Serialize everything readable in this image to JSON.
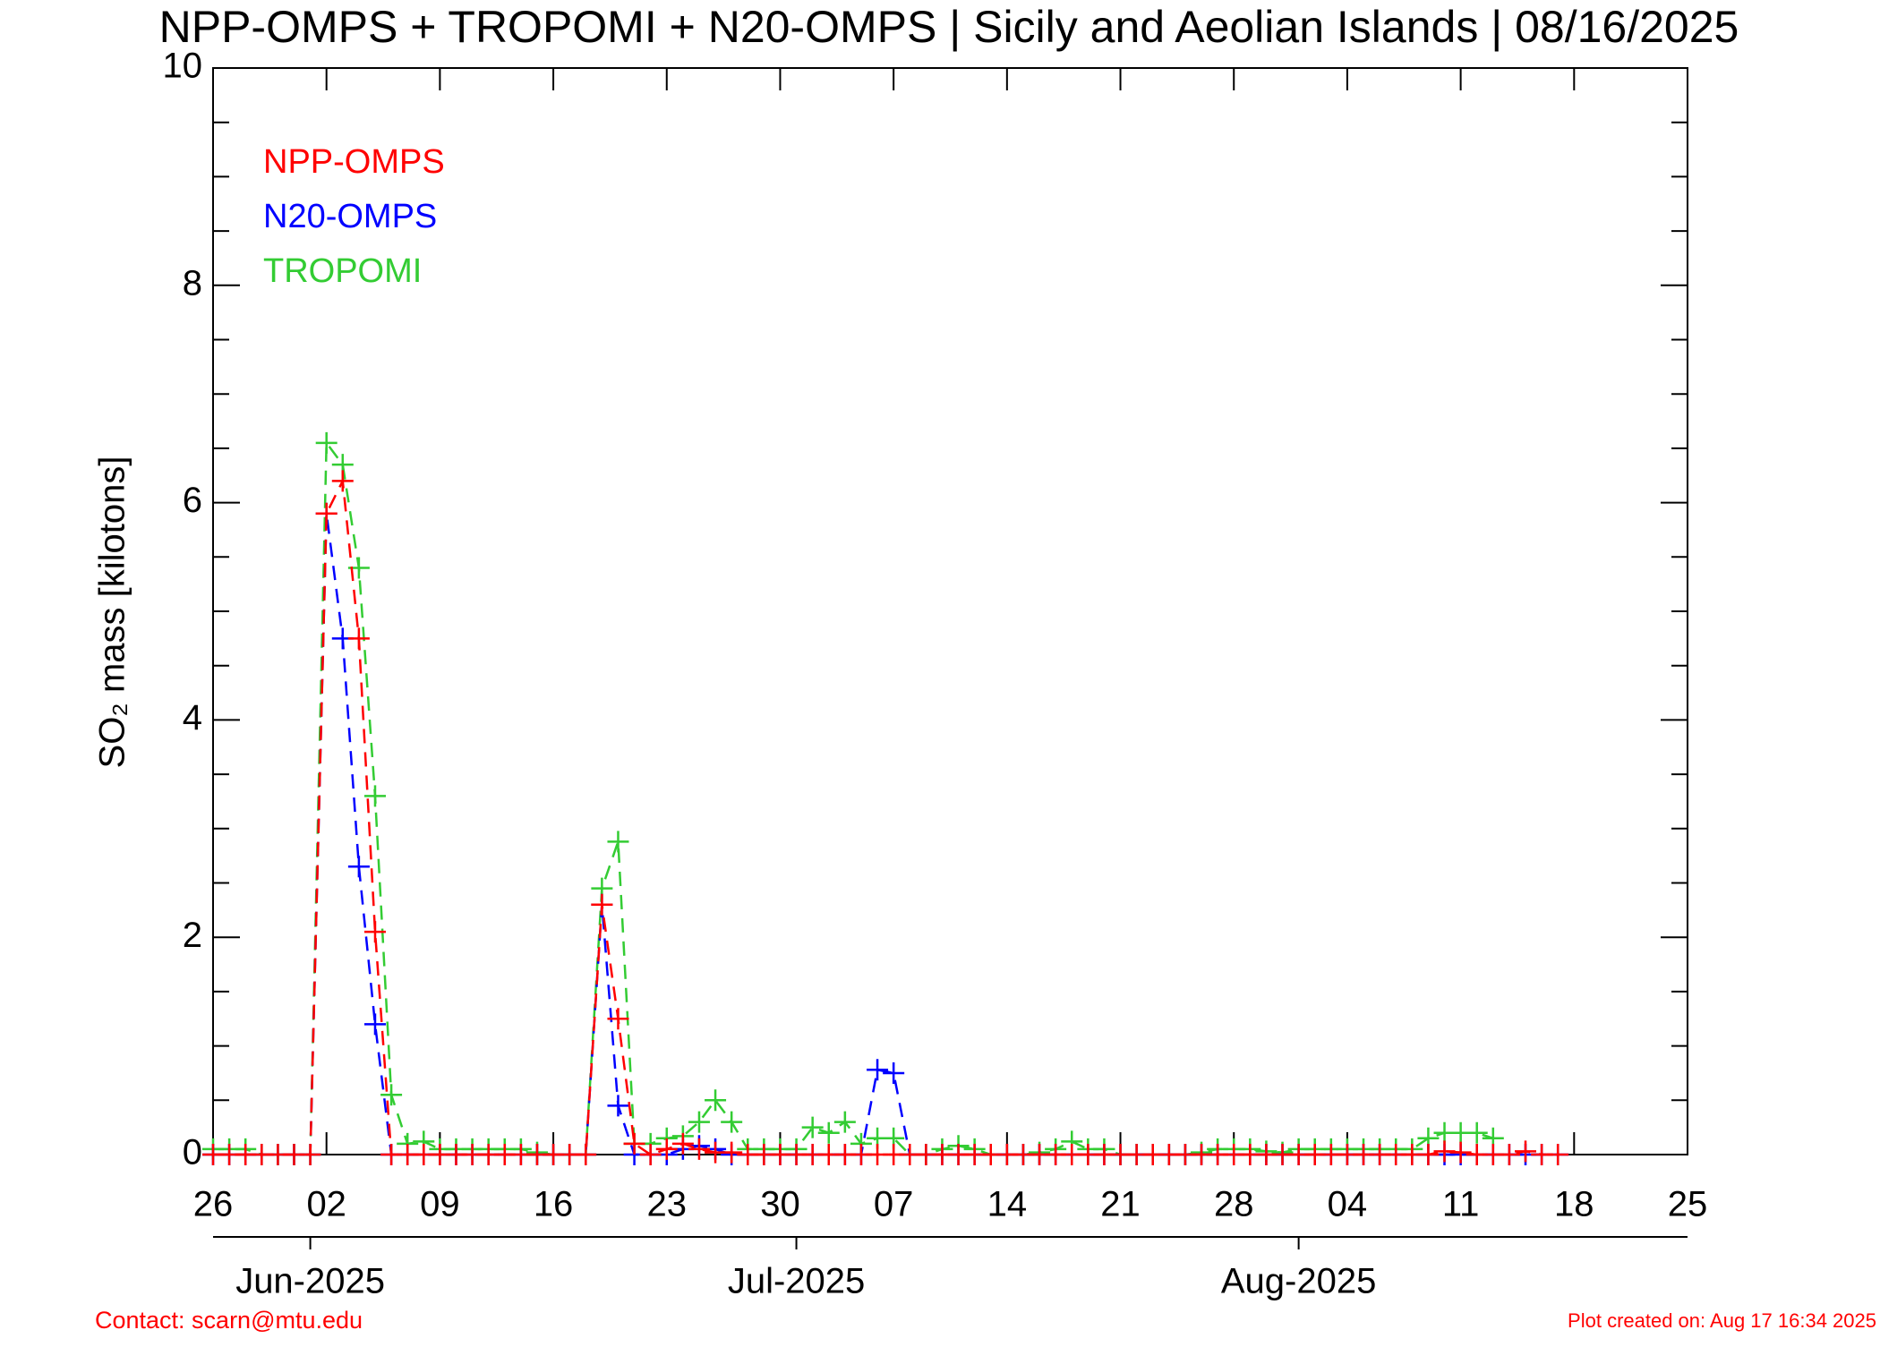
{
  "chart_data": {
    "type": "line",
    "title": "NPP-OMPS + TROPOMI + N20-OMPS | Sicily and Aeolian Islands | 08/16/2025",
    "y_label": "SO₂ mass [kilotons]",
    "contact": "Contact: scarn@mtu.edu",
    "created": "Plot created on: Aug 17 16:34 2025",
    "xlim": [
      "2025-05-26",
      "2025-08-25"
    ],
    "xticks": [
      {
        "value": "2025-05-26",
        "label": "26"
      },
      {
        "value": "2025-06-02",
        "label": "02"
      },
      {
        "value": "2025-06-09",
        "label": "09"
      },
      {
        "value": "2025-06-16",
        "label": "16"
      },
      {
        "value": "2025-06-23",
        "label": "23"
      },
      {
        "value": "2025-06-30",
        "label": "30"
      },
      {
        "value": "2025-07-07",
        "label": "07"
      },
      {
        "value": "2025-07-14",
        "label": "14"
      },
      {
        "value": "2025-07-21",
        "label": "21"
      },
      {
        "value": "2025-07-28",
        "label": "28"
      },
      {
        "value": "2025-08-04",
        "label": "04"
      },
      {
        "value": "2025-08-11",
        "label": "11"
      },
      {
        "value": "2025-08-18",
        "label": "18"
      },
      {
        "value": "2025-08-25",
        "label": "25"
      }
    ],
    "month_ticks": [
      {
        "value": "2025-06-01",
        "label": "Jun-2025"
      },
      {
        "value": "2025-07-01",
        "label": "Jul-2025"
      },
      {
        "value": "2025-08-01",
        "label": "Aug-2025"
      }
    ],
    "ylim": [
      0,
      10
    ],
    "yticks": [
      0,
      2,
      4,
      6,
      8,
      10
    ],
    "yminorticks": [
      0.5,
      1,
      1.5,
      2.5,
      3,
      3.5,
      4.5,
      5,
      5.5,
      6.5,
      7,
      7.5,
      8.5,
      9,
      9.5
    ],
    "x": [
      "2025-05-26",
      "2025-05-27",
      "2025-05-28",
      "2025-05-29",
      "2025-05-30",
      "2025-05-31",
      "2025-06-01",
      "2025-06-02",
      "2025-06-03",
      "2025-06-04",
      "2025-06-05",
      "2025-06-06",
      "2025-06-07",
      "2025-06-08",
      "2025-06-09",
      "2025-06-10",
      "2025-06-11",
      "2025-06-12",
      "2025-06-13",
      "2025-06-14",
      "2025-06-15",
      "2025-06-16",
      "2025-06-17",
      "2025-06-18",
      "2025-06-19",
      "2025-06-20",
      "2025-06-21",
      "2025-06-22",
      "2025-06-23",
      "2025-06-24",
      "2025-06-25",
      "2025-06-26",
      "2025-06-27",
      "2025-06-28",
      "2025-06-29",
      "2025-06-30",
      "2025-07-01",
      "2025-07-02",
      "2025-07-03",
      "2025-07-04",
      "2025-07-05",
      "2025-07-06",
      "2025-07-07",
      "2025-07-08",
      "2025-07-09",
      "2025-07-10",
      "2025-07-11",
      "2025-07-12",
      "2025-07-13",
      "2025-07-14",
      "2025-07-15",
      "2025-07-16",
      "2025-07-17",
      "2025-07-18",
      "2025-07-19",
      "2025-07-20",
      "2025-07-21",
      "2025-07-22",
      "2025-07-23",
      "2025-07-24",
      "2025-07-25",
      "2025-07-26",
      "2025-07-27",
      "2025-07-28",
      "2025-07-29",
      "2025-07-30",
      "2025-07-31",
      "2025-08-01",
      "2025-08-02",
      "2025-08-03",
      "2025-08-04",
      "2025-08-05",
      "2025-08-06",
      "2025-08-07",
      "2025-08-08",
      "2025-08-09",
      "2025-08-10",
      "2025-08-11",
      "2025-08-12",
      "2025-08-13",
      "2025-08-14",
      "2025-08-15",
      "2025-08-16",
      "2025-08-17"
    ],
    "series": [
      {
        "name": "NPP-OMPS",
        "color": "#ff0000",
        "values": [
          0,
          0,
          0,
          0,
          0,
          0,
          0,
          5.9,
          6.2,
          4.75,
          2.05,
          0,
          0,
          0,
          0,
          0,
          0,
          0,
          0,
          0,
          0,
          0,
          0,
          0,
          2.3,
          1.25,
          0.1,
          0,
          0.05,
          0.1,
          0.05,
          0.02,
          0.02,
          0,
          0,
          0,
          0,
          0,
          0,
          0,
          0,
          0,
          0,
          0,
          0,
          0,
          0,
          0,
          0,
          0,
          0,
          0,
          0,
          0,
          0,
          0,
          0,
          0,
          0,
          0,
          0,
          0,
          0,
          0,
          0,
          0,
          0,
          0,
          0,
          0,
          0,
          0,
          0,
          0,
          0,
          0,
          0.03,
          0.02,
          0,
          0,
          0,
          0.03,
          0,
          0
        ]
      },
      {
        "name": "N20-OMPS",
        "color": "#0000ff",
        "values": [
          0,
          0,
          0,
          0,
          0,
          0,
          0,
          5.9,
          4.75,
          2.65,
          1.2,
          0,
          0,
          0,
          0,
          0,
          0,
          0,
          0,
          0,
          0,
          0,
          0,
          0,
          2.3,
          0.45,
          0,
          0,
          0,
          0.05,
          0.08,
          0.05,
          0,
          0,
          0,
          0,
          0,
          0,
          0,
          0,
          0,
          0.78,
          0.75,
          0,
          0,
          0,
          0,
          0,
          0,
          0,
          0,
          0,
          0,
          0,
          0,
          0,
          0,
          0,
          0,
          0,
          0,
          0,
          0,
          0,
          0,
          0,
          0,
          0,
          0,
          0,
          0,
          0,
          0,
          0,
          0,
          0,
          0,
          0,
          0,
          0,
          0,
          0,
          0,
          0
        ]
      },
      {
        "name": "TROPOMI",
        "color": "#33cc33",
        "values": [
          0.05,
          0.05,
          0.05,
          0,
          0,
          0,
          0,
          6.55,
          6.35,
          5.4,
          3.3,
          0.55,
          0.1,
          0.12,
          0.05,
          0.05,
          0.05,
          0.05,
          0.05,
          0.05,
          0.02,
          0,
          0,
          0,
          2.45,
          2.88,
          0.1,
          0.1,
          0.15,
          0.17,
          0.3,
          0.5,
          0.3,
          0.05,
          0.05,
          0.05,
          0.05,
          0.25,
          0.2,
          0.3,
          0.1,
          0.15,
          0.15,
          0,
          0,
          0.05,
          0.08,
          0.05,
          0,
          0,
          0,
          0.02,
          0.05,
          0.12,
          0.05,
          0.05,
          0,
          0,
          0,
          0,
          0,
          0.02,
          0.05,
          0.05,
          0.05,
          0.03,
          0.02,
          0.05,
          0.05,
          0.05,
          0.05,
          0.05,
          0.05,
          0.05,
          0.05,
          0.15,
          0.2,
          0.2,
          0.2,
          0.15,
          null,
          null,
          null,
          null
        ]
      }
    ]
  }
}
